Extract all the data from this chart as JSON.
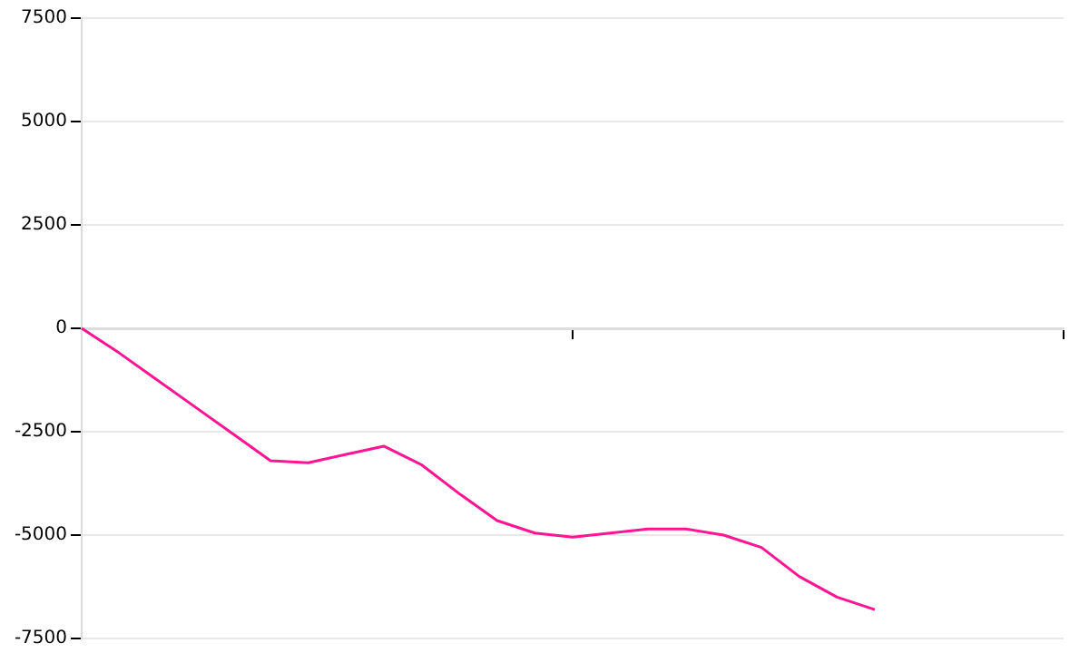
{
  "chart_data": {
    "type": "line",
    "categories": [
      null,
      null,
      null,
      null,
      null,
      null,
      null,
      null,
      null,
      null,
      null,
      null,
      null,
      null,
      null,
      null,
      null,
      null,
      null,
      null,
      null,
      null,
      null,
      null,
      null,
      null,
      null
    ],
    "series": [
      {
        "color": "#ff1493",
        "values": [
          0,
          -600,
          -1250,
          -1900,
          -2550,
          -3200,
          -3250,
          -3050,
          -2850,
          -3300,
          -4000,
          -4650,
          -4950,
          -5050,
          -4950,
          -4850,
          -4850,
          -5000,
          -5300,
          -6000,
          -6500,
          -6800,
          null,
          null,
          null,
          null,
          null
        ]
      }
    ],
    "ylim": [
      -7500,
      7500
    ],
    "yticks": [
      -7500,
      -5000,
      -2500,
      0,
      2500,
      5000,
      7500
    ],
    "tick_labels": "y",
    "grid": "y",
    "legend": false,
    "marker": "none",
    "line_style": "solid"
  }
}
